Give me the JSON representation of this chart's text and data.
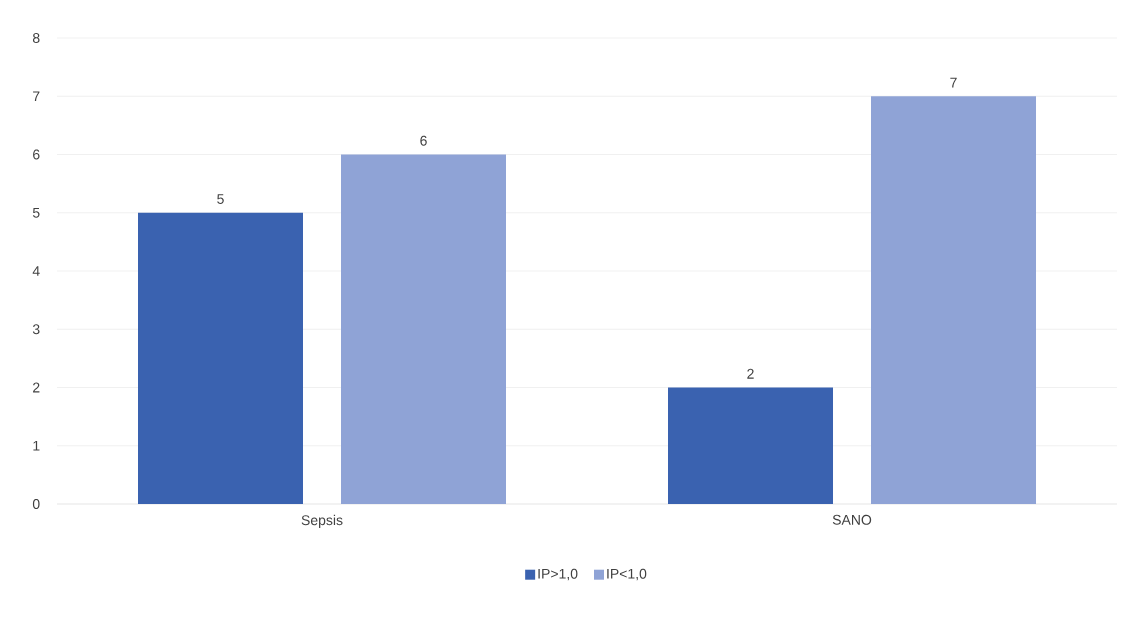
{
  "chart_data": {
    "type": "bar",
    "categories": [
      "Sepsis",
      "SANO"
    ],
    "series": [
      {
        "name": "IP>1,0",
        "color": "#3a62b0",
        "values": [
          5,
          2
        ]
      },
      {
        "name": "IP<1,0",
        "color": "#8fa3d6",
        "values": [
          6,
          7
        ]
      }
    ],
    "ylim": [
      0,
      8
    ],
    "yticks": [
      0,
      1,
      2,
      3,
      4,
      5,
      6,
      7,
      8
    ],
    "grid": "y",
    "legend": "bottom",
    "data_labels": true
  }
}
